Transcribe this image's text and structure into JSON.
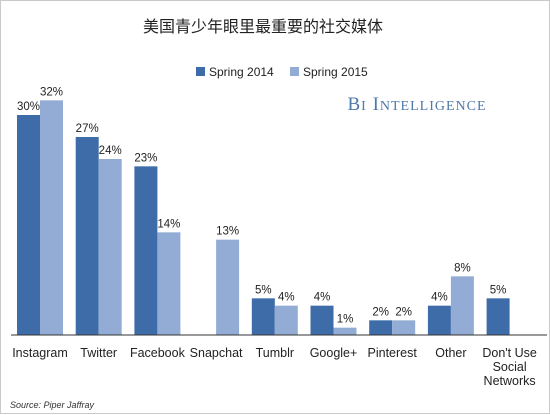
{
  "chart_data": {
    "type": "bar",
    "title": "美国青少年眼里最重要的社交媒体",
    "categories": [
      "Instagram",
      "Twitter",
      "Facebook",
      "Snapchat",
      "Tumblr",
      "Google+",
      "Pinterest",
      "Other",
      "Don't Use Social Networks"
    ],
    "category_lines": [
      [
        "Instagram"
      ],
      [
        "Twitter"
      ],
      [
        "Facebook"
      ],
      [
        "Snapchat"
      ],
      [
        "Tumblr"
      ],
      [
        "Google+"
      ],
      [
        "Pinterest"
      ],
      [
        "Other"
      ],
      [
        "Don't Use",
        "Social",
        "Networks"
      ]
    ],
    "series": [
      {
        "name": "Spring 2014",
        "color": "#3e6ca8",
        "values": [
          30,
          27,
          23,
          null,
          5,
          4,
          2,
          4,
          5
        ]
      },
      {
        "name": "Spring 2015",
        "color": "#93acd5",
        "values": [
          32,
          24,
          14,
          13,
          4,
          1,
          2,
          8,
          null
        ]
      }
    ],
    "value_suffix": "%",
    "ylim": [
      0,
      36
    ],
    "legend_position": "top-center",
    "grid": false,
    "brand": "BI Intelligence",
    "source": "Source: Piper Jaffray"
  }
}
